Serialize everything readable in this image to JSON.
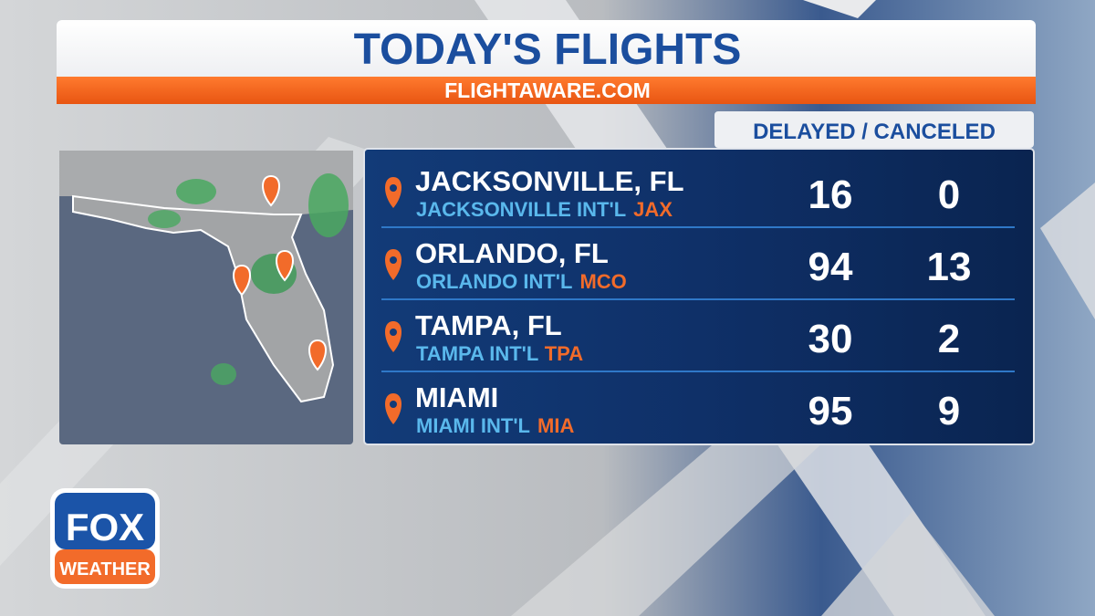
{
  "header": {
    "title": "TODAY'S FLIGHTS",
    "source": "FLIGHTAWARE.COM"
  },
  "table": {
    "column_header": "DELAYED / CANCELED",
    "rows": [
      {
        "city": "JACKSONVILLE, FL",
        "airport": "JACKSONVILLE INT'L",
        "code": "JAX",
        "delayed": "16",
        "canceled": "0"
      },
      {
        "city": "ORLANDO, FL",
        "airport": "ORLANDO INT'L",
        "code": "MCO",
        "delayed": "94",
        "canceled": "13"
      },
      {
        "city": "TAMPA, FL",
        "airport": "TAMPA INT'L",
        "code": "TPA",
        "delayed": "30",
        "canceled": "2"
      },
      {
        "city": "MIAMI",
        "airport": "MIAMI INT'L",
        "code": "MIA",
        "delayed": "95",
        "canceled": "9"
      }
    ]
  },
  "logo": {
    "top": "FOX",
    "bottom": "WEATHER"
  }
}
